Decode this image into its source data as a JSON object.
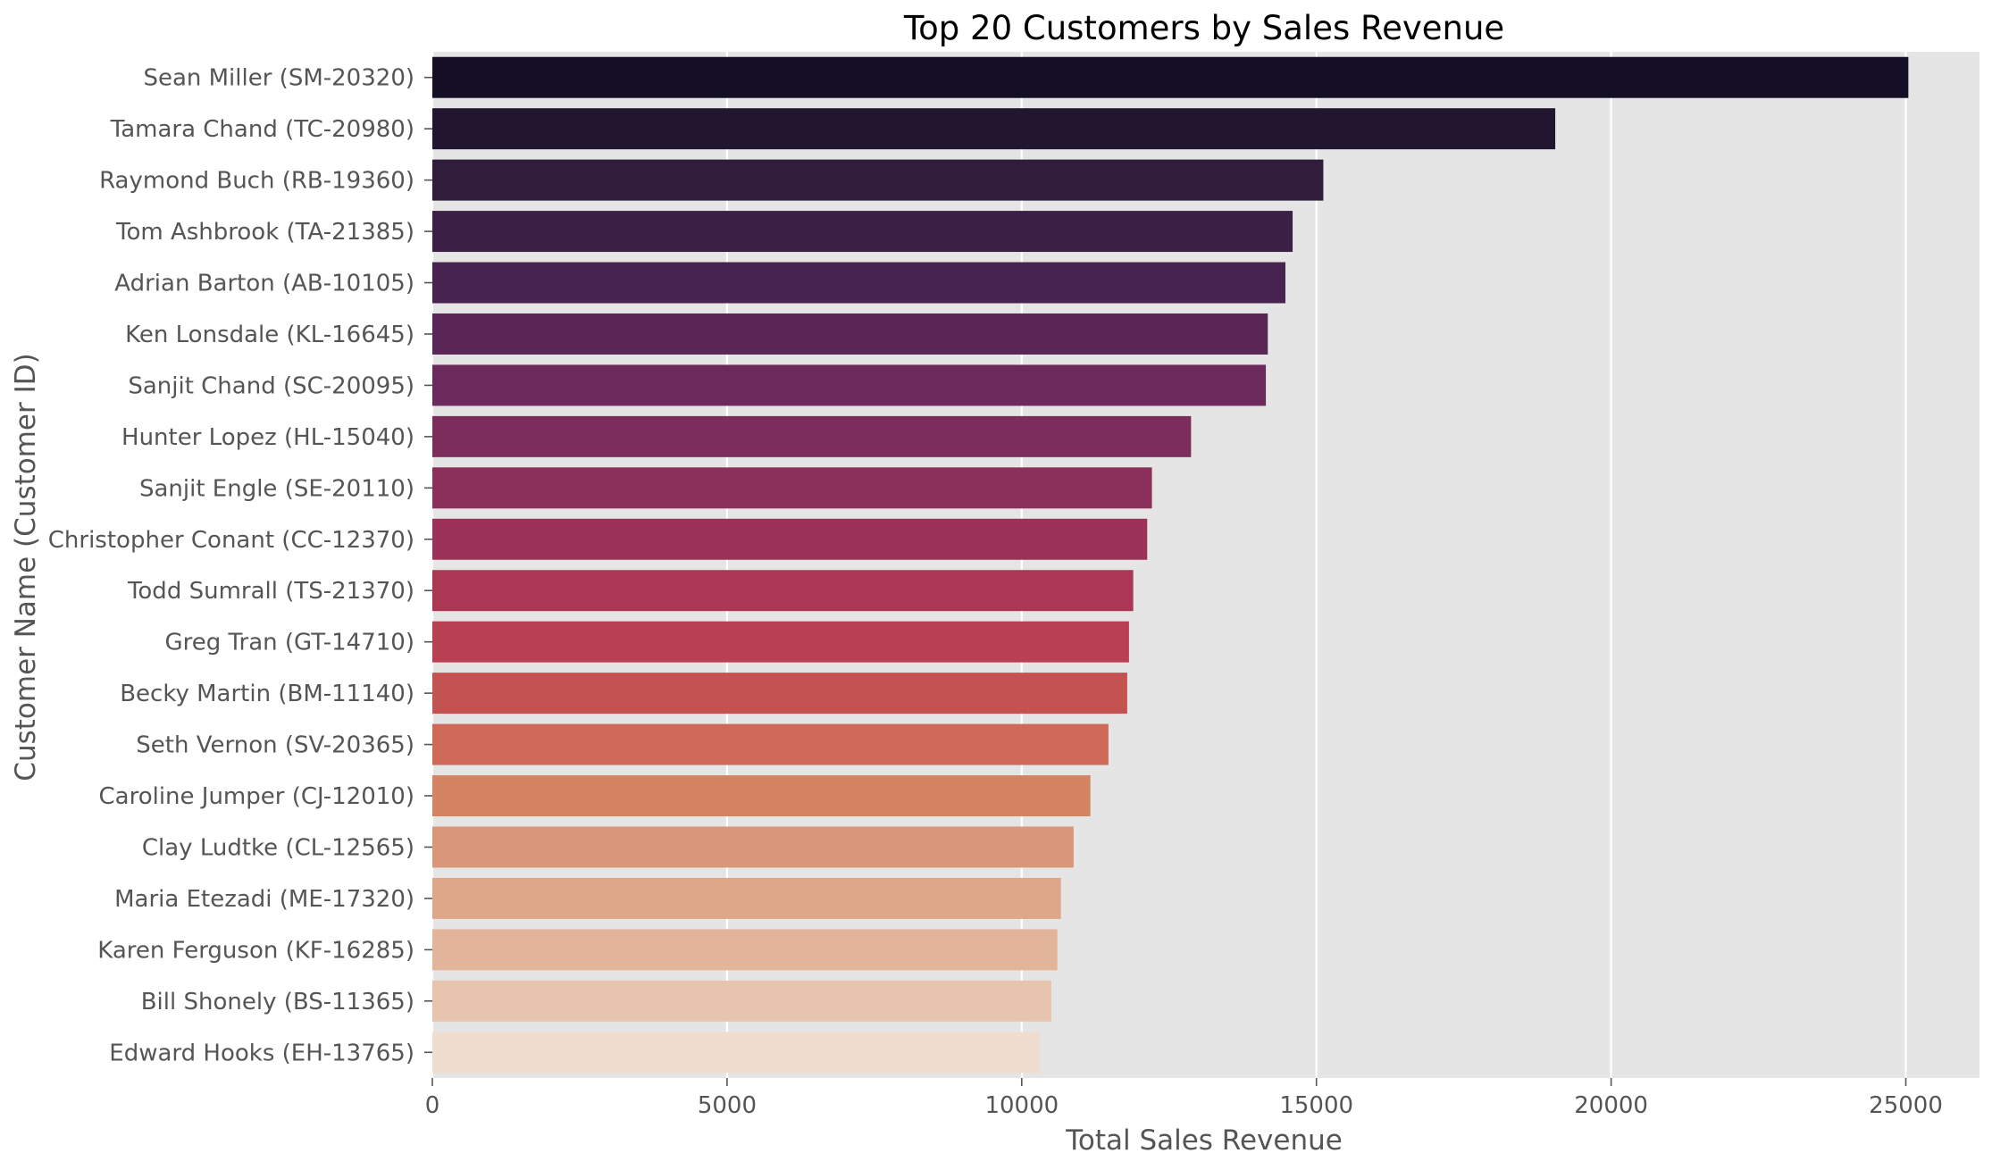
{
  "chart_data": {
    "type": "bar",
    "orientation": "horizontal",
    "title": "Top 20 Customers by Sales Revenue",
    "xlabel": "Total Sales Revenue",
    "ylabel": "Customer Name (Customer ID)",
    "xlim": [
      0,
      26250
    ],
    "x_ticks": [
      0,
      5000,
      10000,
      15000,
      20000,
      25000
    ],
    "grid": true,
    "palette": "rocket",
    "categories": [
      "Sean Miller (SM-20320)",
      "Tamara Chand (TC-20980)",
      "Raymond Buch (RB-19360)",
      "Tom Ashbrook (TA-21385)",
      "Adrian Barton (AB-10105)",
      "Ken Lonsdale (KL-16645)",
      "Sanjit Chand (SC-20095)",
      "Hunter Lopez (HL-15040)",
      "Sanjit Engle (SE-20110)",
      "Christopher Conant (CC-12370)",
      "Todd Sumrall (TS-21370)",
      "Greg Tran (GT-14710)",
      "Becky Martin (BM-11140)",
      "Seth Vernon (SV-20365)",
      "Caroline Jumper (CJ-12010)",
      "Clay Ludtke (CL-12565)",
      "Maria Etezadi (ME-17320)",
      "Karen Ferguson (KF-16285)",
      "Bill Shonely (BS-11365)",
      "Edward Hooks (EH-13765)"
    ],
    "values": [
      25043,
      19052,
      15117,
      14596,
      14474,
      14175,
      14142,
      12873,
      12209,
      12129,
      11892,
      11820,
      11790,
      11471,
      11165,
      10880,
      10664,
      10604,
      10502,
      10311
    ],
    "colors": [
      "#140f24",
      "#221530",
      "#301c3b",
      "#3b1f45",
      "#47234f",
      "#592656",
      "#6b2a5c",
      "#7c2d5b",
      "#8b2f5b",
      "#9c3257",
      "#ab3755",
      "#b94052",
      "#c35251",
      "#ce6a57",
      "#d58463",
      "#da9679",
      "#dea78a",
      "#e2b49a",
      "#e6c4ae",
      "#efddcf"
    ]
  }
}
